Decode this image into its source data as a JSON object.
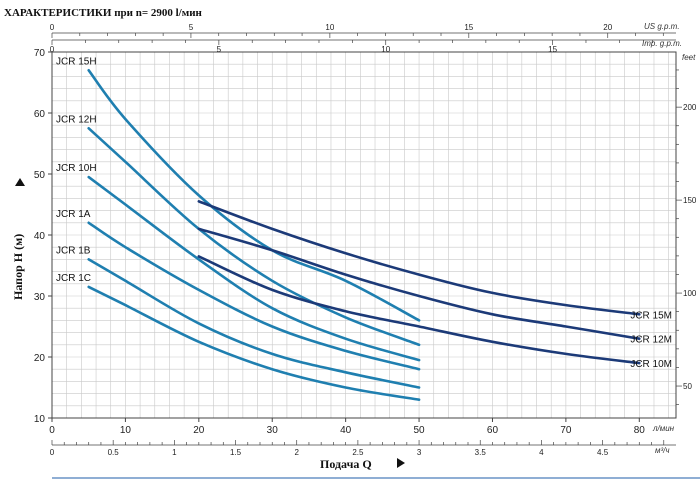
{
  "chart_data": {
    "type": "line",
    "title": "ХАРАКТЕРИСТИКИ при n= 2900 l/мин",
    "xlabel": "Подача Q",
    "ylabel": "Напор H (м)",
    "x_unit": "л/мин",
    "x_secondary_unit": "м³/ч",
    "y_right_unit": "feet",
    "top1_unit": "US g.p.m.",
    "top2_unit": "Imp. g.p.m.",
    "xlim": [
      0,
      85
    ],
    "ylim": [
      10,
      70
    ],
    "x_ticks": [
      "0",
      "10",
      "20",
      "30",
      "40",
      "50",
      "60",
      "70",
      "80"
    ],
    "y_ticks": [
      "10",
      "20",
      "30",
      "40",
      "50",
      "60",
      "70"
    ],
    "m3h_ticks": [
      "0",
      "0.5",
      "1",
      "1.5",
      "2",
      "2.5",
      "3",
      "3.5",
      "4",
      "4.5"
    ],
    "us_gpm_ticks": [
      "0",
      "5",
      "10",
      "15",
      "20"
    ],
    "imp_gpm_ticks": [
      "0",
      "5",
      "10",
      "15"
    ],
    "feet_ticks": [
      "50",
      "100",
      "150",
      "200"
    ],
    "grid": true,
    "series": [
      {
        "name": "JCR 15H",
        "color": "#1f7fb0",
        "x": [
          5,
          10,
          20,
          30,
          40,
          50
        ],
        "y": [
          67,
          59,
          46.5,
          37.5,
          32.5,
          26
        ]
      },
      {
        "name": "JCR 12H",
        "color": "#1f7fb0",
        "x": [
          5,
          10,
          20,
          30,
          40,
          50
        ],
        "y": [
          57.5,
          52,
          41,
          32.5,
          26.5,
          22
        ]
      },
      {
        "name": "JCR 10H",
        "color": "#1f7fb0",
        "x": [
          5,
          10,
          20,
          30,
          40,
          50
        ],
        "y": [
          49.5,
          45,
          36,
          28,
          23,
          19.5
        ]
      },
      {
        "name": "JCR 1A",
        "color": "#1f7fb0",
        "x": [
          5,
          10,
          20,
          30,
          40,
          50
        ],
        "y": [
          42,
          38,
          31,
          25,
          21,
          18
        ]
      },
      {
        "name": "JCR 1B",
        "color": "#1f7fb0",
        "x": [
          5,
          10,
          20,
          30,
          40,
          50
        ],
        "y": [
          36,
          32.5,
          25.5,
          20.5,
          17.5,
          15
        ]
      },
      {
        "name": "JCR 1C",
        "color": "#1f7fb0",
        "x": [
          5,
          10,
          20,
          30,
          40,
          50
        ],
        "y": [
          31.5,
          28.5,
          22.5,
          18,
          15,
          13
        ]
      },
      {
        "name": "JCR 15M",
        "color": "#1c3a78",
        "x": [
          20,
          30,
          40,
          50,
          60,
          70,
          80
        ],
        "y": [
          45.5,
          41,
          37,
          33.5,
          30.5,
          28.5,
          27
        ]
      },
      {
        "name": "JCR 12M",
        "color": "#1c3a78",
        "x": [
          20,
          30,
          40,
          50,
          60,
          70,
          80
        ],
        "y": [
          41,
          37.5,
          33.5,
          30,
          27,
          25,
          23
        ]
      },
      {
        "name": "JCR 10M",
        "color": "#1c3a78",
        "x": [
          20,
          30,
          40,
          50,
          60,
          70,
          80
        ],
        "y": [
          36.5,
          31,
          27.5,
          25,
          22.5,
          20.5,
          19
        ]
      }
    ]
  }
}
